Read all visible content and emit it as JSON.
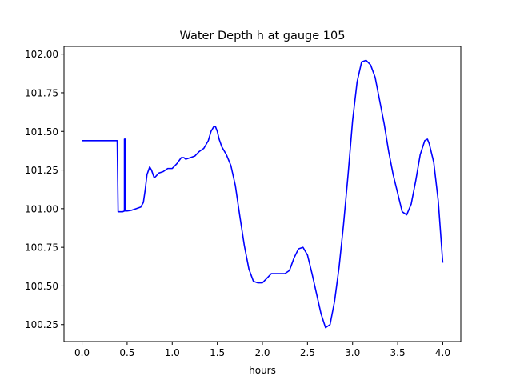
{
  "chart_data": {
    "type": "line",
    "title": "Water Depth h at gauge 105",
    "xlabel": "hours",
    "ylabel": "",
    "xlim": [
      -0.2,
      4.2
    ],
    "ylim": [
      100.14,
      102.05
    ],
    "x_ticks": [
      0.0,
      0.5,
      1.0,
      1.5,
      2.0,
      2.5,
      3.0,
      3.5,
      4.0
    ],
    "x_tick_labels": [
      "0.0",
      "0.5",
      "1.0",
      "1.5",
      "2.0",
      "2.5",
      "3.0",
      "3.5",
      "4.0"
    ],
    "y_ticks": [
      100.25,
      100.5,
      100.75,
      101.0,
      101.25,
      101.5,
      101.75,
      102.0
    ],
    "y_tick_labels": [
      "100.25",
      "100.50",
      "100.75",
      "101.00",
      "101.25",
      "101.50",
      "101.75",
      "102.00"
    ],
    "grid": false,
    "line_color": "#0000ff",
    "series": [
      {
        "name": "",
        "x": [
          0.0,
          0.1,
          0.2,
          0.3,
          0.39,
          0.4,
          0.4,
          0.45,
          0.47,
          0.47,
          0.48,
          0.48,
          0.5,
          0.55,
          0.6,
          0.65,
          0.68,
          0.7,
          0.72,
          0.75,
          0.77,
          0.8,
          0.82,
          0.85,
          0.9,
          0.95,
          1.0,
          1.05,
          1.1,
          1.13,
          1.15,
          1.2,
          1.25,
          1.3,
          1.35,
          1.4,
          1.43,
          1.46,
          1.48,
          1.5,
          1.52,
          1.55,
          1.6,
          1.65,
          1.7,
          1.75,
          1.8,
          1.85,
          1.9,
          1.95,
          2.0,
          2.05,
          2.1,
          2.15,
          2.2,
          2.25,
          2.3,
          2.35,
          2.4,
          2.45,
          2.5,
          2.55,
          2.6,
          2.65,
          2.7,
          2.75,
          2.8,
          2.85,
          2.9,
          2.95,
          3.0,
          3.05,
          3.1,
          3.15,
          3.2,
          3.25,
          3.3,
          3.35,
          3.4,
          3.45,
          3.5,
          3.55,
          3.6,
          3.65,
          3.7,
          3.75,
          3.8,
          3.83,
          3.85,
          3.9,
          3.95,
          4.0
        ],
        "y": [
          101.44,
          101.44,
          101.44,
          101.44,
          101.44,
          100.98,
          100.98,
          100.98,
          100.985,
          101.45,
          101.45,
          100.985,
          100.985,
          100.99,
          101.0,
          101.01,
          101.04,
          101.12,
          101.22,
          101.27,
          101.25,
          101.2,
          101.21,
          101.23,
          101.24,
          101.26,
          101.26,
          101.29,
          101.33,
          101.33,
          101.32,
          101.33,
          101.34,
          101.37,
          101.39,
          101.44,
          101.5,
          101.53,
          101.53,
          101.5,
          101.45,
          101.4,
          101.35,
          101.28,
          101.15,
          100.95,
          100.76,
          100.61,
          100.53,
          100.52,
          100.52,
          100.55,
          100.58,
          100.58,
          100.58,
          100.58,
          100.6,
          100.68,
          100.74,
          100.75,
          100.7,
          100.58,
          100.45,
          100.32,
          100.23,
          100.25,
          100.4,
          100.62,
          100.9,
          101.22,
          101.57,
          101.82,
          101.95,
          101.96,
          101.93,
          101.85,
          101.7,
          101.55,
          101.37,
          101.22,
          101.1,
          100.98,
          100.96,
          101.03,
          101.18,
          101.35,
          101.44,
          101.45,
          101.42,
          101.3,
          101.05,
          100.65
        ]
      }
    ]
  }
}
